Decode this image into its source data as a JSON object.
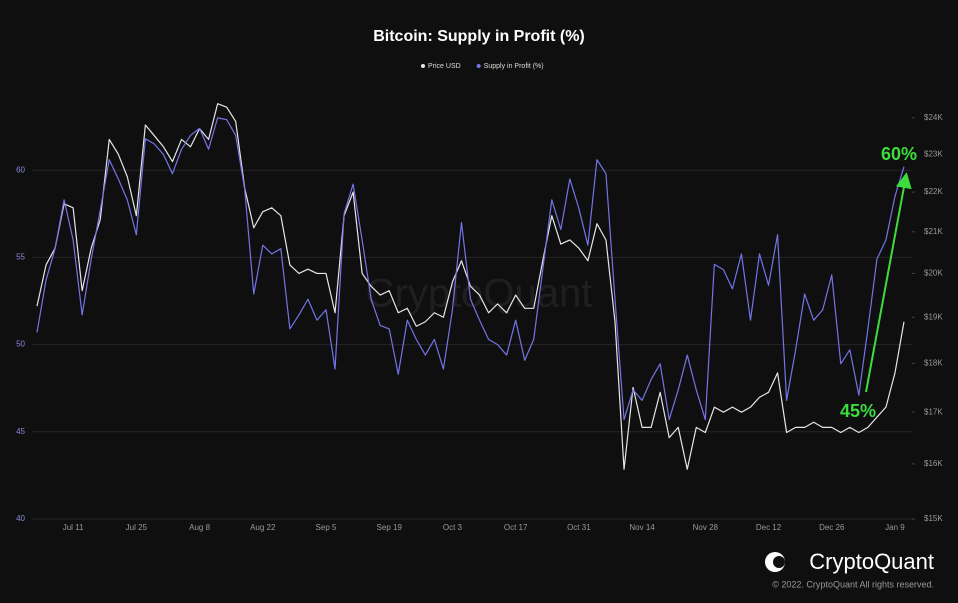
{
  "chart_data": {
    "type": "line",
    "title": "Bitcoin: Supply in Profit (%)",
    "categories": [
      null,
      null,
      null,
      null,
      "Jul 11",
      null,
      null,
      null,
      null,
      null,
      null,
      "Jul 25",
      null,
      null,
      null,
      null,
      null,
      null,
      "Aug 8",
      null,
      null,
      null,
      null,
      null,
      null,
      "Aug 22",
      null,
      null,
      null,
      null,
      null,
      null,
      "Sep 5",
      null,
      null,
      null,
      null,
      null,
      null,
      "Sep 19",
      null,
      null,
      null,
      null,
      null,
      null,
      "Oct 3",
      null,
      null,
      null,
      null,
      null,
      null,
      "Oct 17",
      null,
      null,
      null,
      null,
      null,
      null,
      "Oct 31",
      null,
      null,
      null,
      null,
      null,
      null,
      "Nov 14",
      null,
      null,
      null,
      null,
      null,
      null,
      "Nov 28",
      null,
      null,
      null,
      null,
      null,
      null,
      "Dec 12",
      null,
      null,
      null,
      null,
      null,
      null,
      "Dec 26",
      null,
      null,
      null,
      null,
      null,
      null,
      "Jan 9",
      null
    ],
    "series": [
      {
        "name": "Price USD",
        "color": "#e6e6e6",
        "axis": "y2",
        "values": [
          19250,
          20200,
          20600,
          21700,
          21600,
          19600,
          20600,
          21300,
          23400,
          23000,
          22400,
          21400,
          23800,
          23500,
          23200,
          22800,
          23400,
          23200,
          23700,
          23400,
          24400,
          24300,
          23900,
          22100,
          21100,
          21500,
          21600,
          21400,
          20200,
          20000,
          20100,
          20000,
          20000,
          19100,
          21400,
          22000,
          20000,
          19700,
          19500,
          19600,
          19100,
          19200,
          18800,
          18900,
          19100,
          19000,
          19800,
          20300,
          19700,
          19500,
          19100,
          19300,
          19100,
          19500,
          19200,
          19200,
          20300,
          21400,
          20700,
          20800,
          20600,
          20300,
          21200,
          20800,
          18900,
          15900,
          17500,
          16700,
          16700,
          17400,
          16500,
          16700,
          15900,
          16700,
          16600,
          17100,
          17000,
          17100,
          17000,
          17100,
          17300,
          17400,
          17800,
          16600,
          16700,
          16700,
          16800,
          16700,
          16700,
          16600,
          16700,
          16600,
          16700,
          16900,
          17100,
          17800,
          18900
        ]
      },
      {
        "name": "Supply in Profit (%)",
        "color": "#7474e8",
        "values": [
          50.7,
          53.7,
          55.5,
          58.3,
          56,
          51.7,
          54.9,
          57.7,
          60.6,
          59.5,
          58.3,
          56.3,
          61.8,
          61.5,
          60.9,
          59.8,
          61.2,
          62,
          62.4,
          61.2,
          63,
          62.9,
          62,
          58.9,
          52.9,
          55.7,
          55.2,
          55.5,
          50.9,
          51.7,
          52.6,
          51.4,
          52,
          48.6,
          57.5,
          59.2,
          56,
          52.6,
          51.1,
          50.9,
          48.3,
          51.4,
          50.3,
          49.4,
          50.3,
          48.6,
          52,
          57,
          52.6,
          51.4,
          50.3,
          50,
          49.4,
          51.4,
          49.1,
          50.3,
          54.3,
          58.3,
          56.6,
          59.5,
          57.8,
          55.7,
          60.6,
          59.8,
          52.6,
          45.7,
          47.4,
          46.8,
          48,
          48.9,
          45.7,
          47.4,
          49.4,
          47.4,
          45.7,
          54.6,
          54.3,
          53.2,
          55.2,
          51.4,
          55.2,
          53.4,
          56.3,
          46.8,
          49.7,
          52.9,
          51.4,
          52,
          54,
          48.9,
          49.7,
          47.1,
          50.9,
          54.9,
          56,
          58.5,
          60.2
        ]
      }
    ],
    "ylim": [
      40,
      65
    ],
    "yticks": [
      40,
      45,
      50,
      55,
      60
    ],
    "y2lim": [
      15000,
      25000
    ],
    "y2log": true,
    "y2ticks": [
      {
        "value": 15000,
        "label": "$15K"
      },
      {
        "value": 16000,
        "label": "$16K"
      },
      {
        "value": 17000,
        "label": "$17K"
      },
      {
        "value": 18000,
        "label": "$18K"
      },
      {
        "value": 19000,
        "label": "$19K"
      },
      {
        "value": 20000,
        "label": "$20K"
      },
      {
        "value": 21000,
        "label": "$21K"
      },
      {
        "value": 22000,
        "label": "$22K"
      },
      {
        "value": 23000,
        "label": "$23K"
      },
      {
        "value": 24000,
        "label": "$24K"
      }
    ],
    "grid": true,
    "legend": "top",
    "annotations": [
      {
        "text": "45%",
        "color": "#3ddc3d"
      },
      {
        "text": "60%",
        "color": "#3ddc3d"
      }
    ],
    "watermark": "CryptoQuant",
    "brand": "CryptoQuant",
    "copyright": "© 2022. CryptoQuant All rights reserved."
  }
}
